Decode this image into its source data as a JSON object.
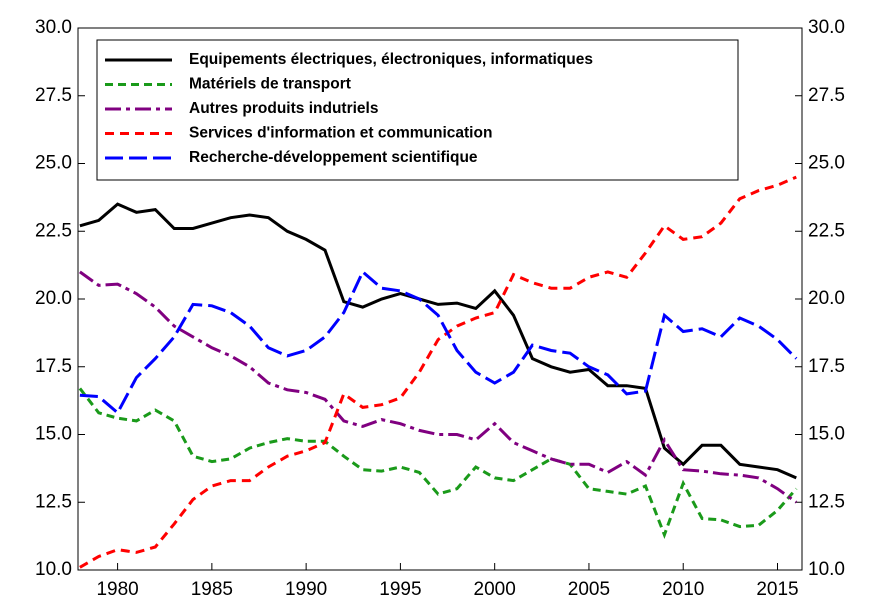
{
  "chart_data": {
    "type": "line",
    "x": [
      1978,
      1979,
      1980,
      1981,
      1982,
      1983,
      1984,
      1985,
      1986,
      1987,
      1988,
      1989,
      1990,
      1991,
      1992,
      1993,
      1994,
      1995,
      1996,
      1997,
      1998,
      1999,
      2000,
      2001,
      2002,
      2003,
      2004,
      2005,
      2006,
      2007,
      2008,
      2009,
      2010,
      2011,
      2012,
      2013,
      2014,
      2015,
      2016
    ],
    "series": [
      {
        "name": "Equipements électriques, électroniques, informatiques",
        "color": "#000000",
        "dash": "none",
        "values": [
          22.7,
          22.9,
          23.5,
          23.2,
          23.3,
          22.6,
          22.6,
          22.8,
          23.0,
          23.1,
          23.0,
          22.5,
          22.2,
          21.8,
          19.9,
          19.7,
          20.0,
          20.2,
          20.0,
          19.8,
          19.85,
          19.65,
          20.3,
          19.4,
          17.8,
          17.5,
          17.3,
          17.4,
          16.8,
          16.8,
          16.7,
          14.5,
          13.9,
          14.6,
          14.6,
          13.9,
          13.8,
          13.7,
          13.4
        ]
      },
      {
        "name": "Matériels de transport",
        "color": "#1a9a1a",
        "dash": "8,5",
        "values": [
          16.7,
          15.8,
          15.6,
          15.5,
          15.9,
          15.5,
          14.2,
          14.0,
          14.1,
          14.5,
          14.7,
          14.85,
          14.75,
          14.75,
          14.2,
          13.7,
          13.65,
          13.8,
          13.6,
          12.8,
          13.0,
          13.8,
          13.4,
          13.3,
          13.7,
          14.1,
          13.9,
          13.0,
          12.9,
          12.8,
          13.1,
          11.3,
          13.2,
          11.9,
          11.85,
          11.6,
          11.65,
          12.2,
          13.0
        ]
      },
      {
        "name": "Autres produits indutriels",
        "color": "#800080",
        "dash": "16,5,4,5",
        "values": [
          21.0,
          20.5,
          20.55,
          20.2,
          19.7,
          19.0,
          18.6,
          18.2,
          17.9,
          17.5,
          16.9,
          16.65,
          16.55,
          16.3,
          15.5,
          15.3,
          15.55,
          15.4,
          15.15,
          15.0,
          15.0,
          14.8,
          15.4,
          14.7,
          14.4,
          14.1,
          13.9,
          13.9,
          13.6,
          14.0,
          13.5,
          14.8,
          13.7,
          13.65,
          13.55,
          13.5,
          13.4,
          13.0,
          12.5
        ]
      },
      {
        "name": "Services d'information et communication",
        "color": "#ff0000",
        "dash": "9,6",
        "values": [
          10.1,
          10.5,
          10.75,
          10.65,
          10.85,
          11.7,
          12.6,
          13.1,
          13.3,
          13.3,
          13.8,
          14.2,
          14.4,
          14.7,
          16.5,
          16.0,
          16.1,
          16.35,
          17.3,
          18.5,
          19.0,
          19.3,
          19.5,
          20.9,
          20.6,
          20.4,
          20.4,
          20.8,
          21.0,
          20.8,
          21.7,
          22.7,
          22.2,
          22.3,
          22.8,
          23.7,
          24.0,
          24.2,
          24.5
        ]
      },
      {
        "name": "Recherche-développement scientifique",
        "color": "#0000ff",
        "dash": "18,6",
        "values": [
          16.45,
          16.4,
          15.8,
          17.1,
          17.8,
          18.6,
          19.8,
          19.75,
          19.5,
          19.0,
          18.2,
          17.9,
          18.1,
          18.6,
          19.5,
          21.0,
          20.4,
          20.3,
          20.0,
          19.4,
          18.1,
          17.3,
          16.9,
          17.3,
          18.3,
          18.1,
          18.0,
          17.5,
          17.2,
          16.5,
          16.6,
          19.4,
          18.8,
          18.9,
          18.6,
          19.3,
          19.0,
          18.5,
          17.8
        ]
      }
    ],
    "xlim": [
      1977.9,
      2016.3
    ],
    "xticks": [
      1980,
      1985,
      1990,
      1995,
      2000,
      2005,
      2010,
      2015
    ],
    "ylim": [
      10,
      30
    ],
    "yticks": [
      {
        "value": 10,
        "label": "10.0"
      },
      {
        "value": 12.5,
        "label": "12.5"
      },
      {
        "value": 15,
        "label": "15.0"
      },
      {
        "value": 17.5,
        "label": "17.5"
      },
      {
        "value": 20,
        "label": "20.0"
      },
      {
        "value": 22.5,
        "label": "22.5"
      },
      {
        "value": 25,
        "label": "25.0"
      },
      {
        "value": 27.5,
        "label": "27.5"
      },
      {
        "value": 30,
        "label": "30.0"
      }
    ],
    "y2lim": [
      10,
      30
    ],
    "y2ticks": [
      {
        "value": 10,
        "label": "10.0"
      },
      {
        "value": 12.5,
        "label": "12.5"
      },
      {
        "value": 15,
        "label": "15.0"
      },
      {
        "value": 17.5,
        "label": "17.5"
      },
      {
        "value": 20,
        "label": "20.0"
      },
      {
        "value": 22.5,
        "label": "22.5"
      },
      {
        "value": 25,
        "label": "25.0"
      },
      {
        "value": 27.5,
        "label": "27.5"
      },
      {
        "value": 30,
        "label": "30.0"
      }
    ],
    "grid": false,
    "legend": "upper left"
  }
}
